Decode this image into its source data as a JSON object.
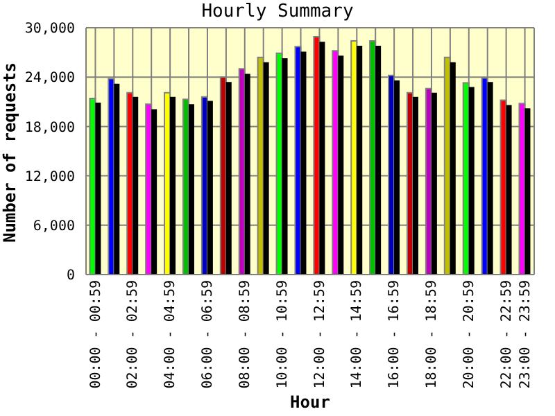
{
  "chart_data": {
    "type": "bar",
    "title": "Hourly Summary",
    "xlabel": "Hour",
    "ylabel": "Number of requests",
    "categories": [
      "00:00 - 00:59",
      null,
      "02:00 - 02:59",
      null,
      "04:00 - 04:59",
      null,
      "06:00 - 06:59",
      null,
      "08:00 - 08:59",
      null,
      "10:00 - 10:59",
      null,
      "12:00 - 12:59",
      null,
      "14:00 - 14:59",
      null,
      "16:00 - 16:59",
      null,
      "18:00 - 18:59",
      null,
      "20:00 - 20:59",
      null,
      "22:00 - 22:59",
      "23:00 - 23:59"
    ],
    "series": [
      {
        "colors": [
          "#00ff00",
          "#0000ff",
          "#ff0000",
          "#ff00ff",
          "#ffff00",
          "#00c000",
          "#0000c0",
          "#c00000",
          "#c000c0",
          "#c0c000",
          "#00ff00",
          "#0000ff",
          "#ff0000",
          "#ff00ff",
          "#ffff00",
          "#00c000",
          "#0000c0",
          "#c00000",
          "#c000c0",
          "#c0c000",
          "#00ff00",
          "#0000ff",
          "#ff0000",
          "#ff00ff"
        ],
        "values": [
          21400,
          23800,
          22100,
          20700,
          22100,
          21300,
          21600,
          24000,
          25000,
          26400,
          26900,
          27700,
          28900,
          27200,
          28400,
          28400,
          24200,
          22100,
          22600,
          26400,
          23300,
          23900,
          21200,
          20800
        ]
      },
      {
        "color": "#000000",
        "values": [
          20900,
          23200,
          21600,
          20100,
          21600,
          20700,
          21100,
          23400,
          24400,
          25800,
          26300,
          27100,
          28300,
          26600,
          27800,
          27800,
          23600,
          21600,
          22100,
          25800,
          22800,
          23400,
          20600,
          20200
        ]
      }
    ],
    "ylim": [
      0,
      30000
    ],
    "yticks": [
      0,
      {
        "value": 6000,
        "label": "6,000"
      },
      {
        "value": 12000,
        "label": "12,000"
      },
      {
        "value": 18000,
        "label": "18,000"
      },
      {
        "value": 24000,
        "label": "24,000"
      },
      {
        "value": 30000,
        "label": "30,000"
      }
    ],
    "grid": true,
    "legend": false
  }
}
